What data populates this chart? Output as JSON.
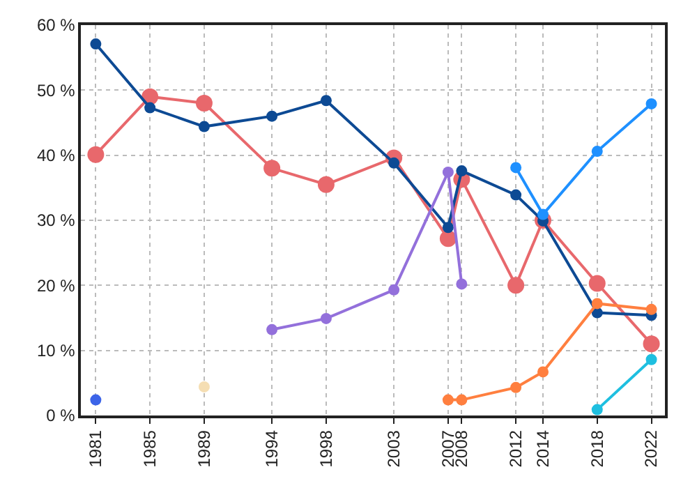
{
  "chart_data": {
    "type": "line",
    "marker": "circle",
    "line_style": "solid",
    "grid": true,
    "xlim": [
      1979.9,
      2023
    ],
    "xticks": [
      1981,
      1985,
      1989,
      1994,
      1998,
      2003,
      2007,
      2008,
      2012,
      2014,
      2018,
      2022
    ],
    "ylim": [
      0,
      60
    ],
    "yticks": [
      {
        "value": 0,
        "label": "0 %"
      },
      {
        "value": 10,
        "label": "10 %"
      },
      {
        "value": 20,
        "label": "20 %"
      },
      {
        "value": 30,
        "label": "30 %"
      },
      {
        "value": 40,
        "label": "40 %"
      },
      {
        "value": 50,
        "label": "50 %"
      },
      {
        "value": 60,
        "label": "60 %"
      }
    ],
    "series": [
      {
        "color": "#e8686c",
        "x": [
          1981,
          1985,
          1989,
          1994,
          1998,
          2003,
          2007,
          2008,
          2012,
          2014,
          2018,
          2022
        ],
        "values": [
          40.1,
          49.0,
          48.0,
          38.0,
          35.5,
          39.6,
          27.2,
          36.3,
          20.0,
          30.0,
          20.3,
          11.0
        ]
      },
      {
        "color": "#0d4a94",
        "x": [
          1981,
          1985,
          1989,
          1994,
          1998,
          2003,
          2007,
          2008,
          2012,
          2014,
          2018,
          2022
        ],
        "values": [
          57.1,
          47.3,
          44.4,
          46.0,
          48.4,
          38.8,
          28.9,
          37.6,
          33.9,
          29.9,
          15.8,
          15.4
        ]
      },
      {
        "color": "#9370db",
        "x": [
          1994,
          1998,
          2003,
          2007,
          2008
        ],
        "values": [
          13.2,
          14.9,
          19.3,
          37.4,
          20.2
        ]
      },
      {
        "color": "#ff7f3f",
        "x": [
          2007,
          2008,
          2012,
          2014,
          2018,
          2022
        ],
        "values": [
          2.4,
          2.4,
          4.3,
          6.7,
          17.2,
          16.3
        ]
      },
      {
        "color": "#1e90ff",
        "x": [
          2012,
          2014,
          2018,
          2022
        ],
        "values": [
          38.1,
          30.9,
          40.6,
          47.9
        ]
      },
      {
        "color": "#1ebfe0",
        "x": [
          2018,
          2022
        ],
        "values": [
          0.9,
          8.6
        ]
      },
      {
        "color": "#3c64e8",
        "x": [
          1981
        ],
        "values": [
          2.4
        ]
      },
      {
        "color": "#f5deb3",
        "x": [
          1989
        ],
        "values": [
          4.4
        ]
      }
    ]
  }
}
